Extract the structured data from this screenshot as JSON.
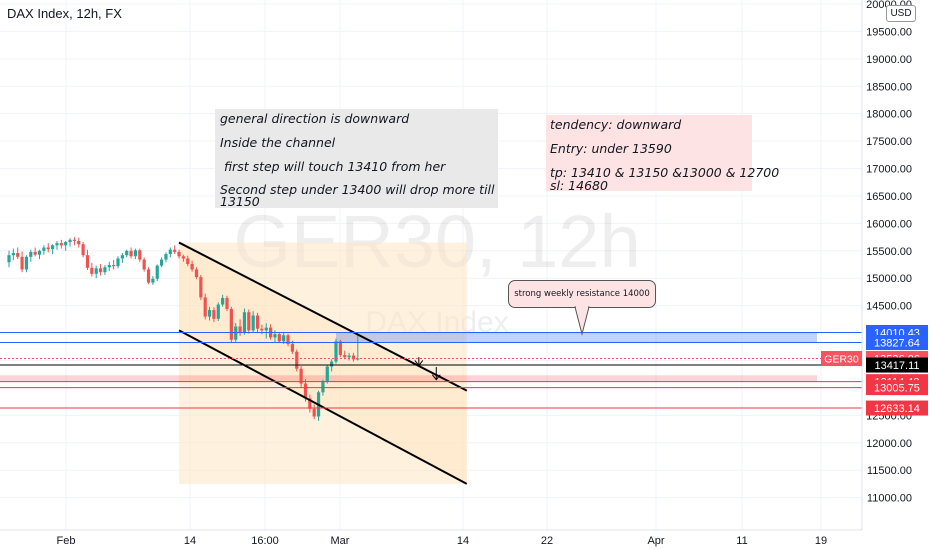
{
  "header": {
    "title": "DAX Index, 12h, FX",
    "currency": "USD"
  },
  "watermark": {
    "symbol": "GER30, 12h",
    "name": "DAX Index"
  },
  "notes": {
    "left": [
      "general direction is downward",
      "Inside the channel",
      " first step will touch 13410 from her",
      "Second step under 13400 will drop more till\n13150"
    ],
    "right": [
      "tendency: downward",
      "Entry: under 13590",
      "tp: 13410 & 13150 &13000 & 12700\nsl: 14680"
    ],
    "callout": "strong weekly resistance 14000"
  },
  "colors": {
    "up": "#26a69a",
    "down": "#ef5350",
    "accent_blue": "#2962ff",
    "red_line": "#f23645",
    "channel_fill": "#fde5c2"
  },
  "chart_data": {
    "type": "candlestick",
    "title": "DAX Index, 12h, FX",
    "symbol": "GER30",
    "timeframe": "12h",
    "ylim": [
      10500,
      20000
    ],
    "y_ticks": [
      11000,
      11500,
      12000,
      12500,
      13000,
      13500,
      14000,
      14500,
      15000,
      15500,
      16000,
      16500,
      17000,
      17500,
      18000,
      18500,
      19000,
      19500,
      20000
    ],
    "x_ticks": [
      "Feb",
      "14",
      "16:00",
      "Mar",
      "14",
      "22",
      "Apr",
      "11",
      "19"
    ],
    "candles": [
      {
        "o": 15290,
        "h": 15500,
        "l": 15200,
        "c": 15420
      },
      {
        "o": 15420,
        "h": 15540,
        "l": 15330,
        "c": 15460
      },
      {
        "o": 15460,
        "h": 15560,
        "l": 15350,
        "c": 15390
      },
      {
        "o": 15390,
        "h": 15490,
        "l": 15110,
        "c": 15160
      },
      {
        "o": 15160,
        "h": 15420,
        "l": 15110,
        "c": 15390
      },
      {
        "o": 15390,
        "h": 15520,
        "l": 15300,
        "c": 15480
      },
      {
        "o": 15480,
        "h": 15560,
        "l": 15400,
        "c": 15430
      },
      {
        "o": 15430,
        "h": 15520,
        "l": 15350,
        "c": 15500
      },
      {
        "o": 15500,
        "h": 15600,
        "l": 15430,
        "c": 15560
      },
      {
        "o": 15560,
        "h": 15640,
        "l": 15470,
        "c": 15530
      },
      {
        "o": 15530,
        "h": 15620,
        "l": 15440,
        "c": 15600
      },
      {
        "o": 15600,
        "h": 15680,
        "l": 15520,
        "c": 15640
      },
      {
        "o": 15640,
        "h": 15700,
        "l": 15540,
        "c": 15600
      },
      {
        "o": 15600,
        "h": 15680,
        "l": 15500,
        "c": 15660
      },
      {
        "o": 15660,
        "h": 15730,
        "l": 15580,
        "c": 15700
      },
      {
        "o": 15700,
        "h": 15750,
        "l": 15600,
        "c": 15680
      },
      {
        "o": 15680,
        "h": 15740,
        "l": 15560,
        "c": 15620
      },
      {
        "o": 15620,
        "h": 15660,
        "l": 15380,
        "c": 15420
      },
      {
        "o": 15420,
        "h": 15520,
        "l": 15150,
        "c": 15190
      },
      {
        "o": 15190,
        "h": 15280,
        "l": 15030,
        "c": 15080
      },
      {
        "o": 15080,
        "h": 15230,
        "l": 15000,
        "c": 15180
      },
      {
        "o": 15180,
        "h": 15260,
        "l": 15050,
        "c": 15110
      },
      {
        "o": 15110,
        "h": 15240,
        "l": 15060,
        "c": 15200
      },
      {
        "o": 15200,
        "h": 15300,
        "l": 15130,
        "c": 15240
      },
      {
        "o": 15240,
        "h": 15330,
        "l": 15160,
        "c": 15220
      },
      {
        "o": 15220,
        "h": 15400,
        "l": 15180,
        "c": 15360
      },
      {
        "o": 15360,
        "h": 15460,
        "l": 15280,
        "c": 15420
      },
      {
        "o": 15420,
        "h": 15520,
        "l": 15380,
        "c": 15500
      },
      {
        "o": 15500,
        "h": 15560,
        "l": 15360,
        "c": 15400
      },
      {
        "o": 15400,
        "h": 15540,
        "l": 15350,
        "c": 15510
      },
      {
        "o": 15510,
        "h": 15540,
        "l": 15300,
        "c": 15340
      },
      {
        "o": 15340,
        "h": 15380,
        "l": 15120,
        "c": 15160
      },
      {
        "o": 15160,
        "h": 15200,
        "l": 14890,
        "c": 14920
      },
      {
        "o": 14920,
        "h": 15040,
        "l": 14880,
        "c": 14990
      },
      {
        "o": 14990,
        "h": 15250,
        "l": 14950,
        "c": 15230
      },
      {
        "o": 15230,
        "h": 15380,
        "l": 15200,
        "c": 15340
      },
      {
        "o": 15340,
        "h": 15470,
        "l": 15290,
        "c": 15440
      },
      {
        "o": 15440,
        "h": 15560,
        "l": 15380,
        "c": 15520
      },
      {
        "o": 15520,
        "h": 15600,
        "l": 15440,
        "c": 15480
      },
      {
        "o": 15480,
        "h": 15520,
        "l": 15360,
        "c": 15400
      },
      {
        "o": 15400,
        "h": 15430,
        "l": 15300,
        "c": 15360
      },
      {
        "o": 15360,
        "h": 15410,
        "l": 15220,
        "c": 15260
      },
      {
        "o": 15260,
        "h": 15320,
        "l": 15120,
        "c": 15160
      },
      {
        "o": 15160,
        "h": 15200,
        "l": 14980,
        "c": 15020
      },
      {
        "o": 15020,
        "h": 15060,
        "l": 14600,
        "c": 14650
      },
      {
        "o": 14650,
        "h": 14720,
        "l": 14250,
        "c": 14300
      },
      {
        "o": 14300,
        "h": 14480,
        "l": 14230,
        "c": 14420
      },
      {
        "o": 14420,
        "h": 14470,
        "l": 14200,
        "c": 14260
      },
      {
        "o": 14260,
        "h": 14560,
        "l": 14220,
        "c": 14520
      },
      {
        "o": 14520,
        "h": 14700,
        "l": 14480,
        "c": 14640
      },
      {
        "o": 14640,
        "h": 14680,
        "l": 14400,
        "c": 14440
      },
      {
        "o": 14440,
        "h": 14480,
        "l": 13820,
        "c": 13880
      },
      {
        "o": 13880,
        "h": 14180,
        "l": 13840,
        "c": 14120
      },
      {
        "o": 14120,
        "h": 14250,
        "l": 13950,
        "c": 14000
      },
      {
        "o": 14000,
        "h": 14450,
        "l": 13970,
        "c": 14380
      },
      {
        "o": 14380,
        "h": 14430,
        "l": 13990,
        "c": 14050
      },
      {
        "o": 14050,
        "h": 14400,
        "l": 14020,
        "c": 14320
      },
      {
        "o": 14320,
        "h": 14370,
        "l": 14000,
        "c": 14080
      },
      {
        "o": 14080,
        "h": 14150,
        "l": 13980,
        "c": 14050
      },
      {
        "o": 14050,
        "h": 14180,
        "l": 13900,
        "c": 14100
      },
      {
        "o": 14100,
        "h": 14160,
        "l": 13880,
        "c": 13920
      },
      {
        "o": 13920,
        "h": 14050,
        "l": 13820,
        "c": 13980
      },
      {
        "o": 13980,
        "h": 14020,
        "l": 13820,
        "c": 13850
      },
      {
        "o": 13850,
        "h": 14010,
        "l": 13800,
        "c": 13960
      },
      {
        "o": 13960,
        "h": 13990,
        "l": 13760,
        "c": 13800
      },
      {
        "o": 13800,
        "h": 13860,
        "l": 13620,
        "c": 13660
      },
      {
        "o": 13660,
        "h": 13700,
        "l": 13300,
        "c": 13350
      },
      {
        "o": 13350,
        "h": 13400,
        "l": 13000,
        "c": 13080
      },
      {
        "o": 13080,
        "h": 13160,
        "l": 12750,
        "c": 12810
      },
      {
        "o": 12810,
        "h": 12880,
        "l": 12550,
        "c": 12620
      },
      {
        "o": 12620,
        "h": 12700,
        "l": 12430,
        "c": 12480
      },
      {
        "o": 12480,
        "h": 12950,
        "l": 12400,
        "c": 12920
      },
      {
        "o": 12920,
        "h": 13150,
        "l": 12860,
        "c": 13120
      },
      {
        "o": 13120,
        "h": 13420,
        "l": 13080,
        "c": 13390
      },
      {
        "o": 13390,
        "h": 13520,
        "l": 13300,
        "c": 13480
      },
      {
        "o": 13480,
        "h": 13900,
        "l": 13440,
        "c": 13850
      },
      {
        "o": 13850,
        "h": 13880,
        "l": 13560,
        "c": 13600
      },
      {
        "o": 13600,
        "h": 13680,
        "l": 13520,
        "c": 13560
      },
      {
        "o": 13560,
        "h": 13640,
        "l": 13500,
        "c": 13590
      },
      {
        "o": 13590,
        "h": 13640,
        "l": 13480,
        "c": 13520
      },
      {
        "o": 13520,
        "h": 14000,
        "l": 13500,
        "c": 13536
      }
    ],
    "price_labels": [
      {
        "value": 14010.43,
        "label": "14010.43",
        "color": "#2962ff"
      },
      {
        "value": 13827.64,
        "label": "13827.64",
        "color": "#2962ff"
      },
      {
        "value": 13536.06,
        "label": "13536.06",
        "color": "#f7525f"
      },
      {
        "value": 13417.11,
        "label": "13417.11",
        "color": "#000000"
      },
      {
        "value": 13114.43,
        "label": "13114.43",
        "color": "#f23645"
      },
      {
        "value": 13005.75,
        "label": "13005.75",
        "color": "#f23645"
      },
      {
        "value": 12633.14,
        "label": "12633.14",
        "color": "#f23645"
      }
    ],
    "current_label": "GER30",
    "channel": {
      "upper": [
        {
          "bar": 39,
          "price": 15650
        },
        {
          "bar": 105,
          "price": 12950
        }
      ],
      "lower": [
        {
          "bar": 39,
          "price": 14050
        },
        {
          "bar": 105,
          "price": 11250
        }
      ]
    },
    "resistance_zone": [
      13827.64,
      14010.43
    ],
    "red_zone": [
      13114.43,
      13230
    ],
    "targets": [
      13410,
      13150
    ]
  }
}
